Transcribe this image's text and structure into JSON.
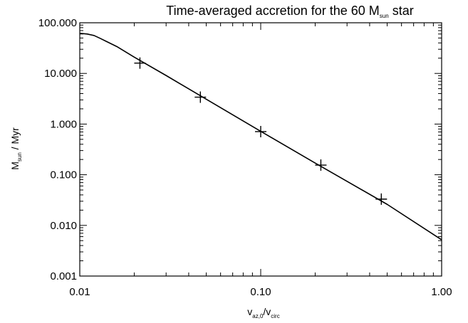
{
  "chart_data": {
    "type": "line",
    "title": {
      "main": "Time-averaged accretion for the 60 M",
      "sub": "sun",
      "tail": " star"
    },
    "xlabel": {
      "a": "v",
      "a_sub": "az,0",
      "sep": "/v",
      "b_sub": "circ"
    },
    "ylabel": {
      "a": "M",
      "a_sub": "sun",
      "tail": " / Myr"
    },
    "xscale": "log",
    "yscale": "log",
    "xlim": [
      0.01,
      1.0
    ],
    "ylim": [
      0.001,
      100
    ],
    "xticks": [
      {
        "value": 0.01,
        "label": "0.01"
      },
      {
        "value": 0.1,
        "label": "0.10"
      },
      {
        "value": 1.0,
        "label": "1.00"
      }
    ],
    "yticks": [
      {
        "value": 100,
        "label": "100.000"
      },
      {
        "value": 10,
        "label": "10.000"
      },
      {
        "value": 1,
        "label": "1.000"
      },
      {
        "value": 0.1,
        "label": "0.100"
      },
      {
        "value": 0.01,
        "label": "0.010"
      },
      {
        "value": 0.001,
        "label": "0.001"
      }
    ],
    "grid": false,
    "legend": "none",
    "series": [
      {
        "style": "line",
        "x": [
          0.01,
          0.011,
          0.012,
          0.013,
          0.014,
          0.016,
          0.02,
          0.03,
          0.05,
          0.1,
          0.2,
          0.5,
          1.0
        ],
        "y": [
          62,
          60,
          56,
          49,
          43,
          34,
          21,
          9.1,
          3.1,
          0.72,
          0.17,
          0.026,
          0.0052
        ]
      },
      {
        "style": "plus-markers",
        "x": [
          0.0215,
          0.0464,
          0.1,
          0.215,
          0.464
        ],
        "y": [
          16,
          3.4,
          0.71,
          0.155,
          0.033
        ]
      }
    ]
  }
}
